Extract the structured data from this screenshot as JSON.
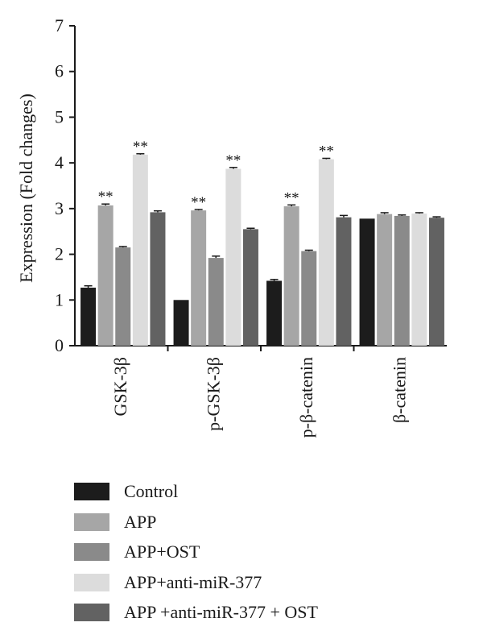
{
  "chart_data": {
    "type": "bar",
    "title": "",
    "xlabel": "",
    "ylabel": "Expression (Fold changes)",
    "ylim": [
      0,
      7
    ],
    "yticks": [
      0,
      1,
      2,
      3,
      4,
      5,
      6,
      7
    ],
    "categories": [
      "GSK-3β",
      "p-GSK-3β",
      "p-β-catenin",
      "β-catenin"
    ],
    "series": [
      {
        "name": "Control",
        "color": "#1c1c1c",
        "values": [
          1.27,
          1.0,
          1.42,
          2.78
        ],
        "errors": [
          0.04,
          0.0,
          0.03,
          0.0
        ],
        "marks": [
          "",
          "",
          "",
          ""
        ]
      },
      {
        "name": "APP",
        "color": "#a6a6a6",
        "values": [
          3.07,
          2.96,
          3.05,
          2.88
        ],
        "errors": [
          0.03,
          0.02,
          0.03,
          0.03
        ],
        "marks": [
          "**",
          "**",
          "**",
          ""
        ]
      },
      {
        "name": "APP+OST",
        "color": "#8a8a8a",
        "values": [
          2.15,
          1.92,
          2.07,
          2.84
        ],
        "errors": [
          0.02,
          0.04,
          0.02,
          0.02
        ],
        "marks": [
          "",
          "",
          "",
          ""
        ]
      },
      {
        "name": "APP+anti-miR-377",
        "color": "#dcdcdc",
        "values": [
          4.18,
          3.87,
          4.08,
          2.89
        ],
        "errors": [
          0.02,
          0.03,
          0.02,
          0.02
        ],
        "marks": [
          "**",
          "**",
          "**",
          ""
        ]
      },
      {
        "name": "APP +anti-miR-377 + OST",
        "color": "#626262",
        "values": [
          2.92,
          2.55,
          2.81,
          2.8
        ],
        "errors": [
          0.03,
          0.02,
          0.04,
          0.02
        ],
        "marks": [
          "",
          "",
          "",
          ""
        ]
      }
    ],
    "grid": false,
    "legend_position": "bottom"
  }
}
